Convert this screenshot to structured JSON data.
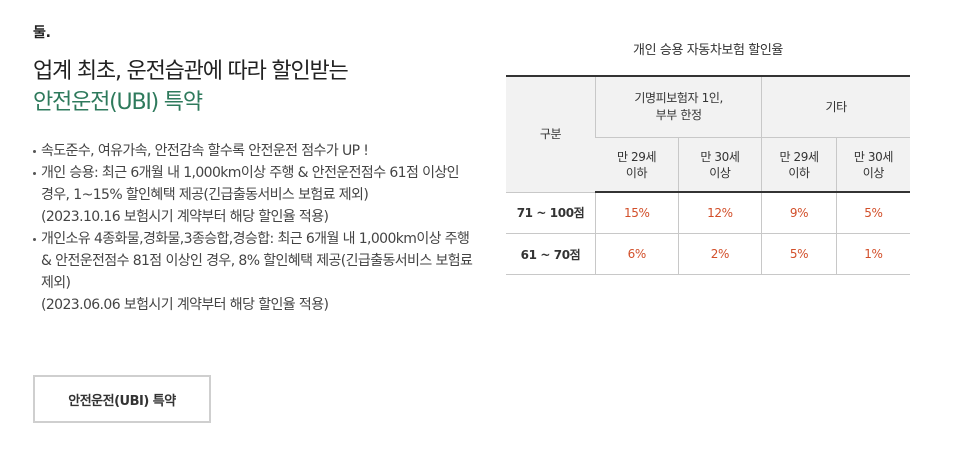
{
  "left": {
    "eyebrow": "둘.",
    "headline_line1": "업계 최초, 운전습관에 따라 할인받는",
    "headline_line2": "안전운전(UBI) 특약",
    "bullets": [
      {
        "text": "속도준수, 여유가속, 안전감속 할수록 안전운전 점수가 UP !",
        "note": ""
      },
      {
        "text": "개인 승용: 최근 6개월 내 1,000km이상 주행 & 안전운전점수 61점 이상인 경우, 1~15% 할인혜택 제공(긴급출동서비스 보험료 제외)",
        "note": "(2023.10.16 보험시기 계약부터 해당 할인율 적용)"
      },
      {
        "text": "개인소유 4종화물,경화물,3종승합,경승합: 최근 6개월 내 1,000km이상 주행 & 안전운전점수 81점 이상인 경우, 8% 할인혜택 제공(긴급출동서비스 보험료 제외)",
        "note": "(2023.06.06 보험시기 계약부터 해당 할인율 적용)"
      }
    ],
    "button_label": "안전운전(UBI) 특약"
  },
  "table": {
    "title": "개인 승용 자동차보험 할인율",
    "col_category": "구분",
    "group1_line1": "기명피보험자 1인,",
    "group1_line2": "부부 한정",
    "group2": "기타",
    "sub_headers": [
      {
        "l1": "만 29세",
        "l2": "이하"
      },
      {
        "l1": "만 30세",
        "l2": "이상"
      },
      {
        "l1": "만 29세",
        "l2": "이하"
      },
      {
        "l1": "만 30세",
        "l2": "이상"
      }
    ],
    "rows": [
      {
        "label": "71 ~ 100점",
        "values": [
          "15%",
          "12%",
          "9%",
          "5%"
        ]
      },
      {
        "label": "61 ~ 70점",
        "values": [
          "6%",
          "2%",
          "5%",
          "1%"
        ]
      }
    ]
  },
  "colors": {
    "accent": "#2e7a5c",
    "rate_value": "#d24f2a"
  }
}
